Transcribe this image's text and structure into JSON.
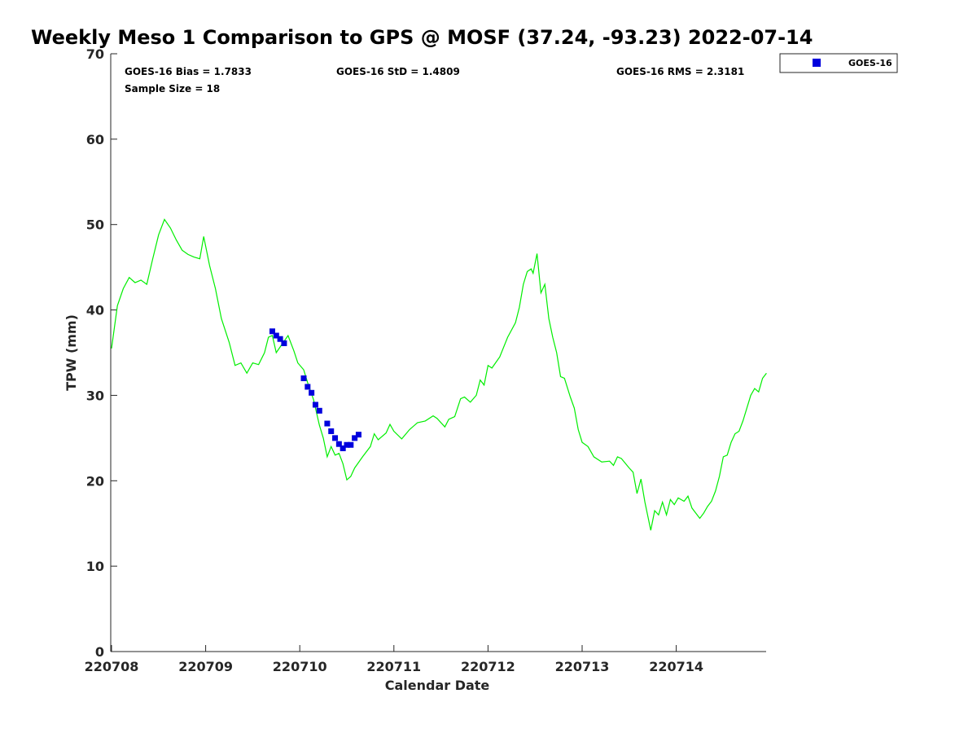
{
  "chart_data": {
    "type": "scatter",
    "title": "Weekly Meso 1 Comparison to GPS @ MOSF (37.24, -93.23) 2022-07-14",
    "xlabel": "Calendar Date",
    "ylabel": "TPW (mm)",
    "xlim": [
      "220708",
      "220714 23:00"
    ],
    "ylim": [
      0,
      70
    ],
    "x_ticks": [
      "220708",
      "220709",
      "220710",
      "220711",
      "220712",
      "220713",
      "220714"
    ],
    "y_ticks": [
      "0",
      "10",
      "20",
      "30",
      "40",
      "50",
      "60",
      "70"
    ],
    "grid": false,
    "legend_position": "top-right",
    "stats": {
      "bias": "GOES-16 Bias = 1.7833",
      "std": "GOES-16 StD = 1.4809",
      "rms": "GOES-16 RMS = 2.3181",
      "sample": "Sample Size = 18"
    },
    "series": [
      {
        "name": "GOES-16",
        "kind": "marker",
        "color": "#0000dd",
        "points": [
          [
            "220709 17:00",
            37.5
          ],
          [
            "220709 18:00",
            37.0
          ],
          [
            "220709 19:00",
            36.6
          ],
          [
            "220709 20:00",
            36.1
          ],
          [
            "220710 01:00",
            32.0
          ],
          [
            "220710 02:00",
            31.0
          ],
          [
            "220710 03:00",
            30.3
          ],
          [
            "220710 04:00",
            28.9
          ],
          [
            "220710 05:00",
            28.2
          ],
          [
            "220710 07:00",
            26.7
          ],
          [
            "220710 08:00",
            25.8
          ],
          [
            "220710 09:00",
            25.0
          ],
          [
            "220710 10:00",
            24.3
          ],
          [
            "220710 11:00",
            23.8
          ],
          [
            "220710 12:00",
            24.2
          ],
          [
            "220710 13:00",
            24.2
          ],
          [
            "220710 14:00",
            25.0
          ],
          [
            "220710 15:00",
            25.4
          ]
        ]
      },
      {
        "kind": "line",
        "color": "#00ee00",
        "points": [
          [
            "220708 00:00",
            35.5
          ],
          [
            "220708 01:30",
            40.5
          ],
          [
            "220708 03:00",
            42.5
          ],
          [
            "220708 04:30",
            43.8
          ],
          [
            "220708 06:00",
            43.2
          ],
          [
            "220708 07:30",
            43.5
          ],
          [
            "220708 09:00",
            43.0
          ],
          [
            "220708 10:30",
            46.0
          ],
          [
            "220708 12:00",
            48.8
          ],
          [
            "220708 13:30",
            50.6
          ],
          [
            "220708 15:00",
            49.6
          ],
          [
            "220708 16:30",
            48.2
          ],
          [
            "220708 18:00",
            47.0
          ],
          [
            "220708 19:30",
            46.5
          ],
          [
            "220708 21:00",
            46.2
          ],
          [
            "220708 22:30",
            46.0
          ],
          [
            "220708 23:30",
            48.6
          ],
          [
            "220709 01:00",
            45.2
          ],
          [
            "220709 02:30",
            42.5
          ],
          [
            "220709 04:00",
            39.0
          ],
          [
            "220709 06:00",
            36.2
          ],
          [
            "220709 07:30",
            33.5
          ],
          [
            "220709 09:00",
            33.8
          ],
          [
            "220709 10:30",
            32.6
          ],
          [
            "220709 12:00",
            33.8
          ],
          [
            "220709 13:30",
            33.6
          ],
          [
            "220709 15:00",
            35.0
          ],
          [
            "220709 16:00",
            36.8
          ],
          [
            "220709 17:00",
            37.0
          ],
          [
            "220709 18:00",
            35.0
          ],
          [
            "220709 19:30",
            36.0
          ],
          [
            "220709 21:00",
            37.0
          ],
          [
            "220709 22:30",
            35.2
          ],
          [
            "220709 23:30",
            33.8
          ],
          [
            "220710 01:00",
            33.0
          ],
          [
            "220710 02:00",
            31.5
          ],
          [
            "220710 03:30",
            29.5
          ],
          [
            "220710 05:00",
            26.5
          ],
          [
            "220710 06:00",
            25.0
          ],
          [
            "220710 07:00",
            22.8
          ],
          [
            "220710 08:00",
            24.0
          ],
          [
            "220710 09:00",
            23.0
          ],
          [
            "220710 10:00",
            23.2
          ],
          [
            "220710 11:00",
            22.0
          ],
          [
            "220710 12:00",
            20.1
          ],
          [
            "220710 13:00",
            20.5
          ],
          [
            "220710 14:00",
            21.5
          ],
          [
            "220710 16:00",
            22.8
          ],
          [
            "220710 18:00",
            24.0
          ],
          [
            "220710 19:00",
            25.5
          ],
          [
            "220710 20:00",
            24.8
          ],
          [
            "220710 22:00",
            25.6
          ],
          [
            "220710 23:00",
            26.6
          ],
          [
            "220711 00:00",
            25.8
          ],
          [
            "220711 02:00",
            24.9
          ],
          [
            "220711 04:00",
            26.0
          ],
          [
            "220711 06:00",
            26.8
          ],
          [
            "220711 08:00",
            27.0
          ],
          [
            "220711 10:00",
            27.6
          ],
          [
            "220711 11:00",
            27.3
          ],
          [
            "220711 13:00",
            26.3
          ],
          [
            "220711 14:00",
            27.2
          ],
          [
            "220711 15:30",
            27.5
          ],
          [
            "220711 17:00",
            29.6
          ],
          [
            "220711 18:00",
            29.8
          ],
          [
            "220711 19:30",
            29.2
          ],
          [
            "220711 21:00",
            30.0
          ],
          [
            "220711 22:00",
            31.8
          ],
          [
            "220711 23:00",
            31.2
          ],
          [
            "220712 00:00",
            33.5
          ],
          [
            "220712 01:00",
            33.2
          ],
          [
            "220712 03:00",
            34.5
          ],
          [
            "220712 05:00",
            36.8
          ],
          [
            "220712 07:00",
            38.5
          ],
          [
            "220712 08:00",
            40.3
          ],
          [
            "220712 09:00",
            43.0
          ],
          [
            "220712 10:00",
            44.5
          ],
          [
            "220712 11:00",
            44.8
          ],
          [
            "220712 11:30",
            44.3
          ],
          [
            "220712 12:30",
            46.6
          ],
          [
            "220712 13:30",
            42.0
          ],
          [
            "220712 14:30",
            43.0
          ],
          [
            "220712 15:30",
            39.0
          ],
          [
            "220712 16:30",
            36.8
          ],
          [
            "220712 17:30",
            35.0
          ],
          [
            "220712 18:30",
            32.2
          ],
          [
            "220712 19:30",
            32.0
          ],
          [
            "220712 21:00",
            29.8
          ],
          [
            "220712 22:00",
            28.5
          ],
          [
            "220712 23:00",
            26.0
          ],
          [
            "220713 00:00",
            24.5
          ],
          [
            "220713 01:30",
            24.0
          ],
          [
            "220713 03:00",
            22.8
          ],
          [
            "220713 05:00",
            22.2
          ],
          [
            "220713 07:00",
            22.3
          ],
          [
            "220713 08:00",
            21.8
          ],
          [
            "220713 09:00",
            22.8
          ],
          [
            "220713 10:00",
            22.6
          ],
          [
            "220713 12:00",
            21.5
          ],
          [
            "220713 13:00",
            21.0
          ],
          [
            "220713 14:00",
            18.5
          ],
          [
            "220713 15:00",
            20.2
          ],
          [
            "220713 16:00",
            17.5
          ],
          [
            "220713 17:30",
            14.2
          ],
          [
            "220713 18:30",
            16.5
          ],
          [
            "220713 19:30",
            16.0
          ],
          [
            "220713 20:30",
            17.5
          ],
          [
            "220713 21:30",
            16.0
          ],
          [
            "220713 22:30",
            17.8
          ],
          [
            "220713 23:30",
            17.2
          ],
          [
            "220714 00:30",
            18.0
          ],
          [
            "220714 02:00",
            17.6
          ],
          [
            "220714 03:00",
            18.2
          ],
          [
            "220714 04:00",
            16.8
          ],
          [
            "220714 05:00",
            16.2
          ],
          [
            "220714 06:00",
            15.6
          ],
          [
            "220714 07:00",
            16.2
          ],
          [
            "220714 08:00",
            17.0
          ],
          [
            "220714 09:00",
            17.6
          ],
          [
            "220714 10:00",
            18.8
          ],
          [
            "220714 11:00",
            20.5
          ],
          [
            "220714 12:00",
            22.8
          ],
          [
            "220714 13:00",
            23.0
          ],
          [
            "220714 14:00",
            24.5
          ],
          [
            "220714 15:00",
            25.5
          ],
          [
            "220714 16:00",
            25.8
          ],
          [
            "220714 17:00",
            27.0
          ],
          [
            "220714 18:00",
            28.5
          ],
          [
            "220714 19:00",
            30.0
          ],
          [
            "220714 20:00",
            30.8
          ],
          [
            "220714 21:00",
            30.4
          ],
          [
            "220714 22:00",
            32.0
          ],
          [
            "220714 23:00",
            32.6
          ]
        ]
      }
    ]
  }
}
